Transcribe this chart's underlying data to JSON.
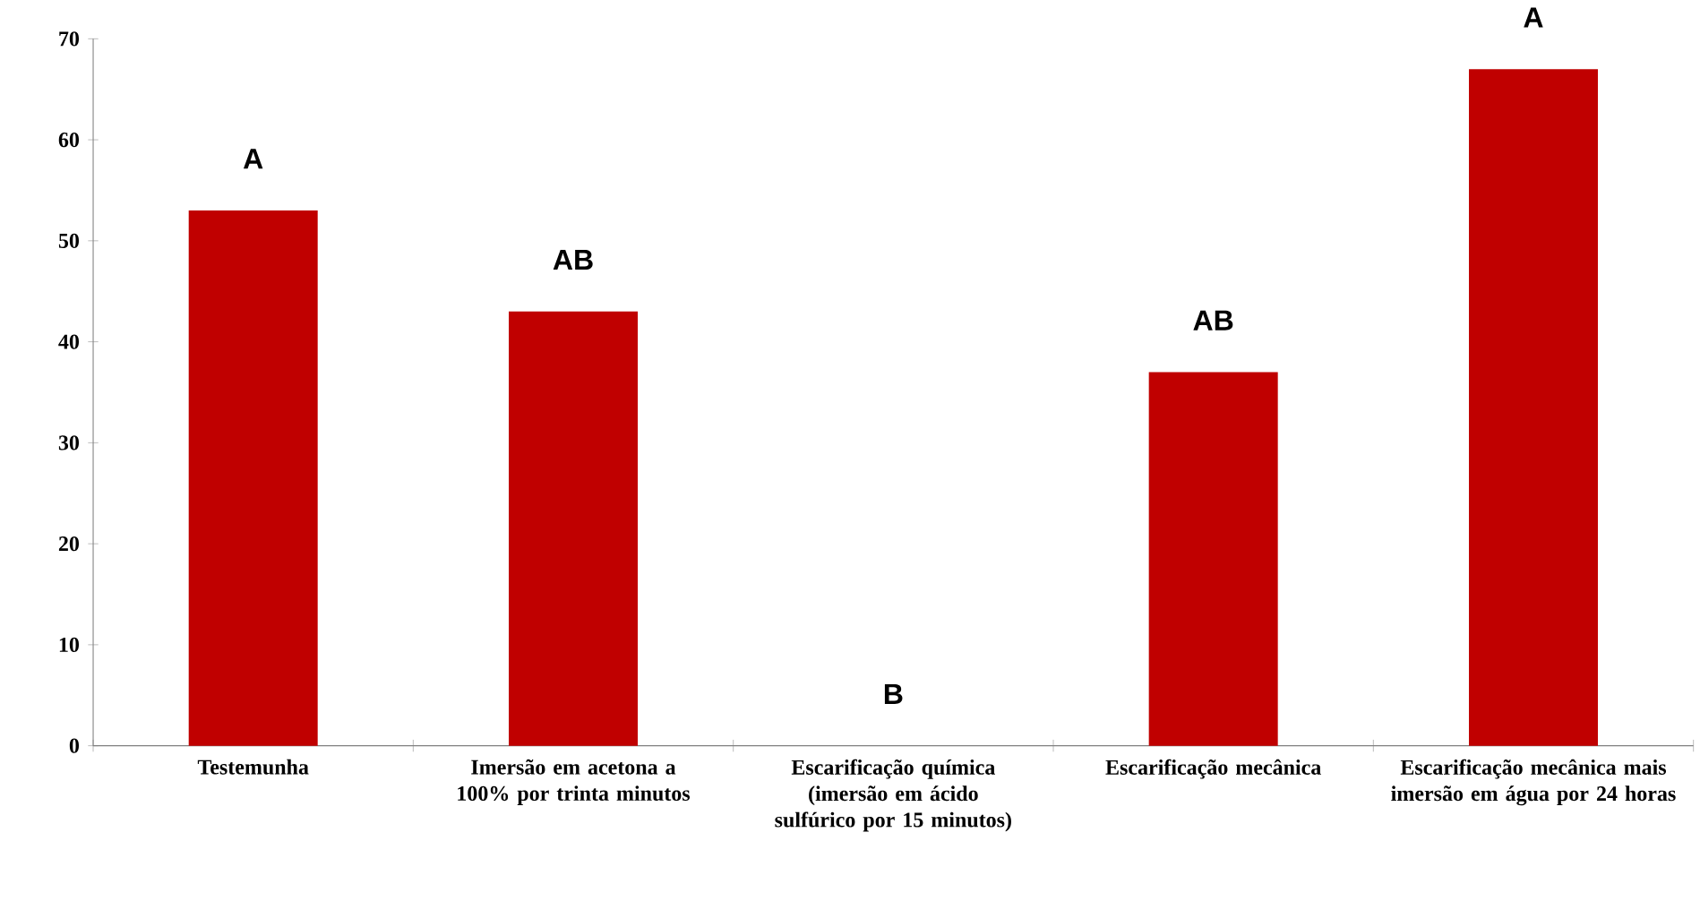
{
  "chart_data": {
    "type": "bar",
    "categories": [
      "Testemunha",
      "Imersão em acetona a 100% por trinta minutos",
      "Escarificação química (imersão em ácido sulfúrico por 15 minutos)",
      "Escarificação mecânica",
      "Escarificação mecânica mais imersão em água por 24 horas"
    ],
    "values": [
      53,
      43,
      0,
      37,
      67
    ],
    "color": "#c00000",
    "ylim": [
      0,
      70
    ],
    "yticks": [
      0,
      10,
      20,
      30,
      40,
      50,
      60,
      70
    ],
    "annotations": [
      "A",
      "AB",
      "B",
      "AB",
      "A"
    ],
    "grid": false
  }
}
